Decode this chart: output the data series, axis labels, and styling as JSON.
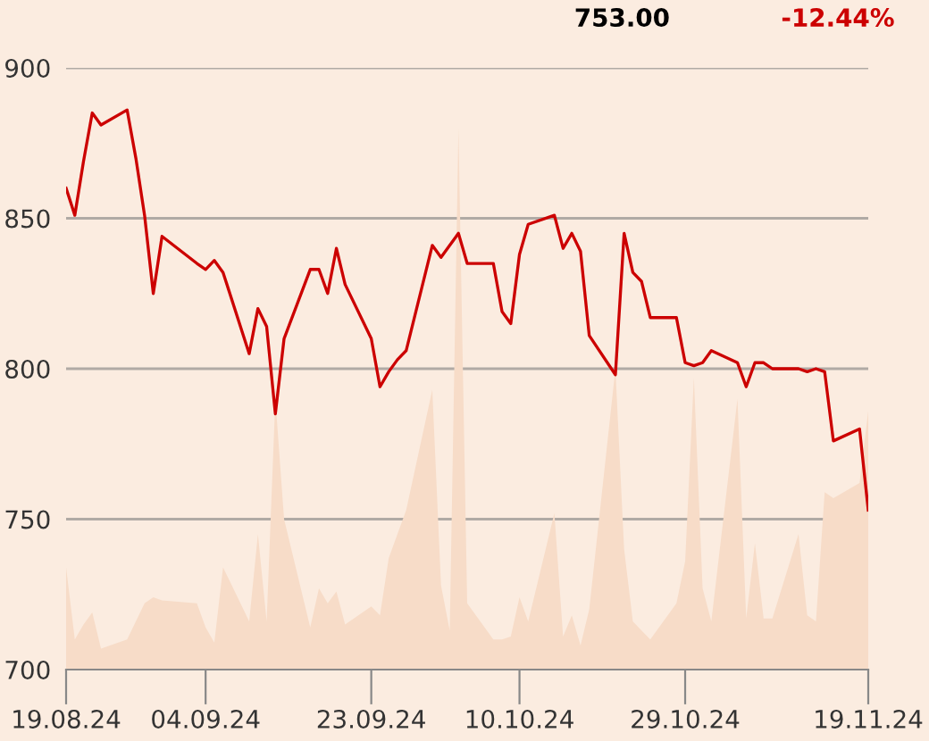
{
  "chart_data": {
    "type": "line",
    "annotations": [
      "753.00",
      "-12.44%"
    ],
    "x": [
      "2024-08-19",
      "2024-08-20",
      "2024-08-21",
      "2024-08-22",
      "2024-08-23",
      "2024-08-26",
      "2024-08-27",
      "2024-08-28",
      "2024-08-29",
      "2024-08-30",
      "2024-09-03",
      "2024-09-04",
      "2024-09-05",
      "2024-09-06",
      "2024-09-09",
      "2024-09-10",
      "2024-09-11",
      "2024-09-12",
      "2024-09-13",
      "2024-09-16",
      "2024-09-17",
      "2024-09-18",
      "2024-09-19",
      "2024-09-20",
      "2024-09-23",
      "2024-09-24",
      "2024-09-25",
      "2024-09-26",
      "2024-09-27",
      "2024-09-30",
      "2024-10-01",
      "2024-10-02",
      "2024-10-03",
      "2024-10-04",
      "2024-10-07",
      "2024-10-08",
      "2024-10-09",
      "2024-10-10",
      "2024-10-11",
      "2024-10-14",
      "2024-10-15",
      "2024-10-16",
      "2024-10-17",
      "2024-10-18",
      "2024-10-21",
      "2024-10-22",
      "2024-10-23",
      "2024-10-24",
      "2024-10-25",
      "2024-10-28",
      "2024-10-29",
      "2024-10-30",
      "2024-10-31",
      "2024-11-01",
      "2024-11-04",
      "2024-11-05",
      "2024-11-06",
      "2024-11-07",
      "2024-11-08",
      "2024-11-11",
      "2024-11-12",
      "2024-11-13",
      "2024-11-14",
      "2024-11-15",
      "2024-11-18",
      "2024-11-19"
    ],
    "series": [
      {
        "type": "area",
        "color": "#f7dcc8",
        "values": [
          734,
          710,
          715,
          719,
          707,
          710,
          716,
          722,
          724,
          723,
          722,
          714,
          709,
          734,
          716,
          745,
          716,
          790,
          750,
          714,
          727,
          722,
          726,
          715,
          721,
          718,
          737,
          745,
          753,
          793,
          728,
          713,
          880,
          722,
          710,
          710,
          711,
          724,
          716,
          752,
          711,
          718,
          708,
          720,
          800,
          740,
          716,
          713,
          710,
          722,
          736,
          797,
          727,
          716,
          790,
          717,
          742,
          717,
          717,
          745,
          718,
          716,
          759,
          757,
          762,
          786
        ]
      },
      {
        "color": "#cc0000",
        "values": [
          860,
          851,
          869,
          885,
          881,
          886,
          870,
          851,
          825,
          844,
          835,
          833,
          836,
          832,
          805,
          820,
          814,
          785,
          810,
          833,
          833,
          825,
          840,
          828,
          810,
          794,
          799,
          803,
          806,
          841,
          837,
          841,
          845,
          835,
          835,
          819,
          815,
          838,
          848,
          851,
          840,
          845,
          839,
          811,
          798,
          845,
          832,
          829,
          817,
          817,
          802,
          801,
          802,
          806,
          802,
          794,
          802,
          802,
          800,
          800,
          799,
          800,
          799,
          776,
          780,
          753
        ]
      }
    ],
    "xlim": [
      "2024-08-19",
      "2024-11-19"
    ],
    "xticks": [
      {
        "value": "2024-08-19",
        "label": "19.08.24"
      },
      {
        "value": "2024-09-04",
        "label": "04.09.24"
      },
      {
        "value": "2024-09-23",
        "label": "23.09.24"
      },
      {
        "value": "2024-10-10",
        "label": "10.10.24"
      },
      {
        "value": "2024-10-29",
        "label": "29.10.24"
      },
      {
        "value": "2024-11-19",
        "label": "19.11.24"
      }
    ],
    "ylim": [
      700,
      900
    ],
    "yticks": [
      700,
      750,
      800,
      850,
      900
    ],
    "grid": "y",
    "legend": false
  }
}
